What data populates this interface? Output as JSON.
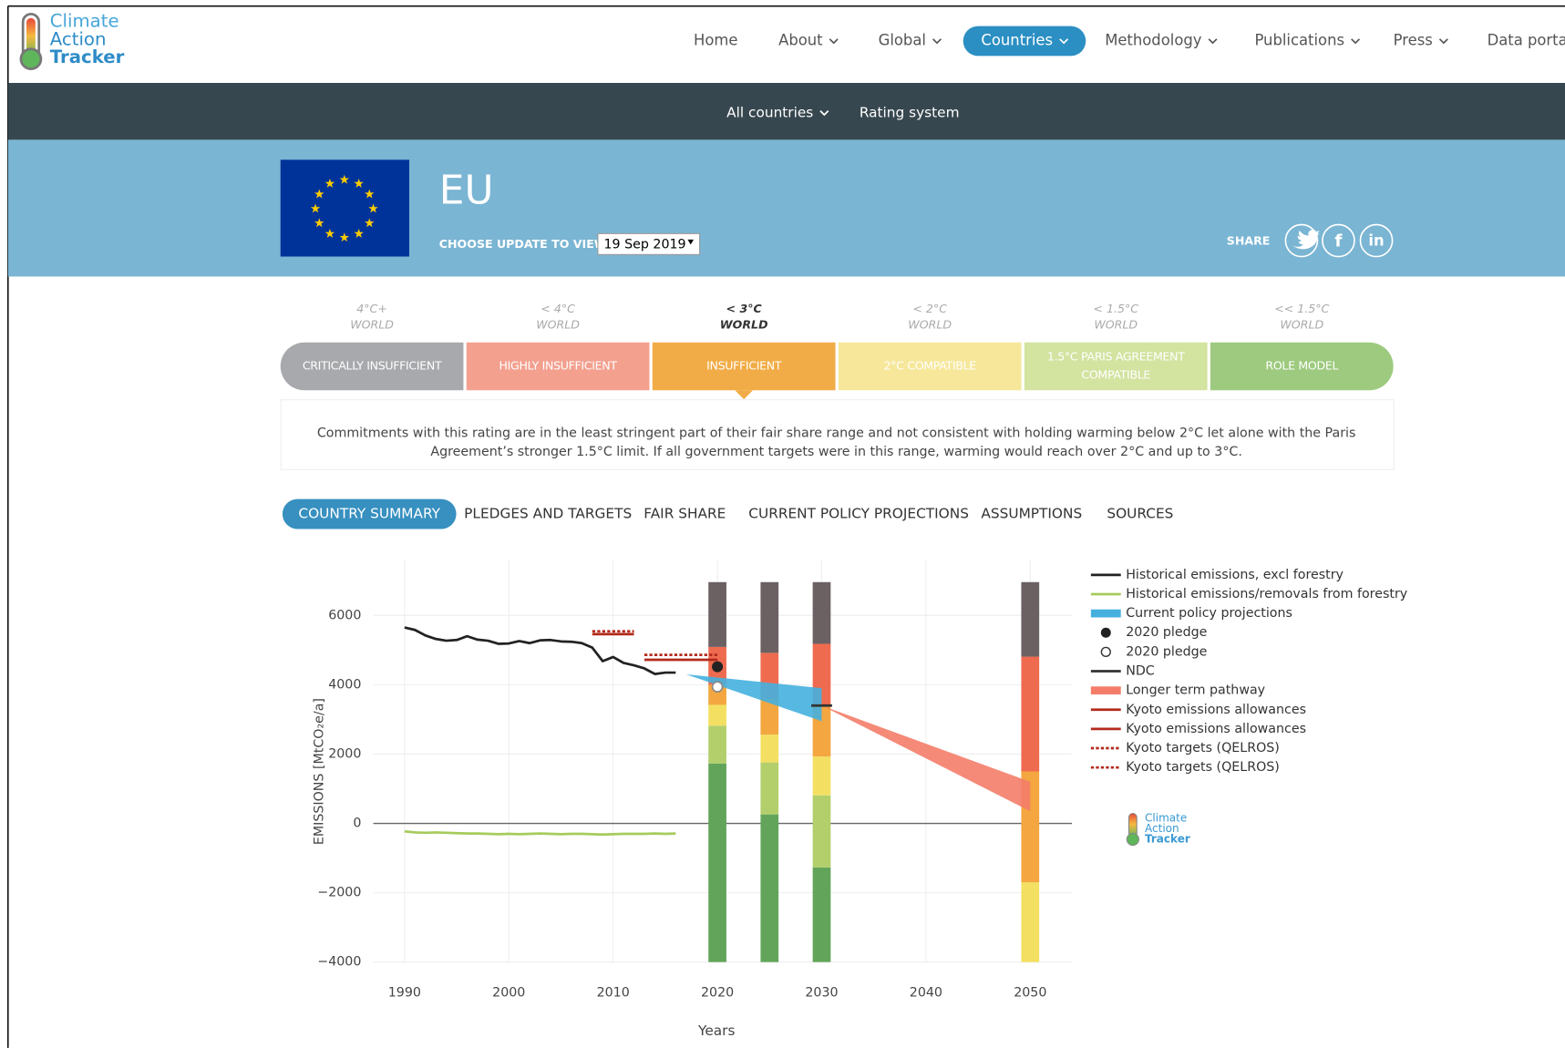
{
  "header": {
    "logo": [
      "Climate",
      "Action",
      "Tracker"
    ],
    "nav": [
      {
        "label": "Home"
      },
      {
        "label": "About",
        "menu": true
      },
      {
        "label": "Global",
        "menu": true
      },
      {
        "label": "Countries",
        "menu": true
      },
      {
        "label": "Methodology",
        "menu": true
      },
      {
        "label": "Publications",
        "menu": true
      },
      {
        "label": "Press",
        "menu": true
      },
      {
        "label": "Data portal"
      }
    ],
    "active": 3
  },
  "subnav": [
    {
      "label": "All countries",
      "menu": true
    },
    {
      "label": "Rating system"
    }
  ],
  "banner": {
    "country": "EU",
    "update_label": "CHOOSE UPDATE TO VIEW",
    "update_value": "19 Sep 2019",
    "share": "SHARE",
    "share_icons": [
      "f",
      "in"
    ]
  },
  "ratings": {
    "items": [
      {
        "level": "4°C+",
        "world": "WORLD",
        "label": [
          "CRITICALLY INSUFFICIENT"
        ],
        "color": "#a7a9ac"
      },
      {
        "level": "< 4°C",
        "world": "WORLD",
        "label": [
          "HIGHLY INSUFFICIENT"
        ],
        "color": "#f3a08f"
      },
      {
        "level": "< 3°C",
        "world": "WORLD",
        "label": [
          "INSUFFICIENT"
        ],
        "color": "#f2ac47"
      },
      {
        "level": "< 2°C",
        "world": "WORLD",
        "label": [
          "2°C COMPATIBLE"
        ],
        "color": "#f6e79b"
      },
      {
        "level": "< 1.5°C",
        "world": "WORLD",
        "label": [
          "1.5°C PARIS AGREEMENT",
          "COMPATIBLE"
        ],
        "color": "#d3e3a0"
      },
      {
        "level": "<< 1.5°C",
        "world": "WORLD",
        "label": [
          "ROLE MODEL"
        ],
        "color": "#9dca7e"
      }
    ],
    "active": 2,
    "description": [
      "Commitments with this rating are in the least stringent part of their fair share range and not consistent with holding warming below 2°C let alone with the Paris",
      "Agreement’s stronger 1.5°C limit. If all government targets were in this range, warming would reach over 2°C and up to 3°C."
    ]
  },
  "tabs": {
    "items": [
      "COUNTRY SUMMARY",
      "PLEDGES AND TARGETS",
      "FAIR SHARE",
      "CURRENT POLICY PROJECTIONS",
      "ASSUMPTIONS",
      "SOURCES"
    ],
    "active": 0
  },
  "chart_data": {
    "type": "combo",
    "x_label": "Years",
    "y_label": "EMISSIONS [MtCO₂e/a]",
    "xlim": [
      1987,
      2054
    ],
    "ylim": [
      -4000,
      7600
    ],
    "xticks": [
      1990,
      2000,
      2010,
      2020,
      2030,
      2040,
      2050
    ],
    "yticks": [
      6000,
      4000,
      2000,
      0,
      {
        "value": -2000,
        "label": "−2000"
      },
      {
        "value": -4000,
        "label": "−4000"
      }
    ],
    "grid": true,
    "rating_bars": {
      "x": [
        2020,
        2025,
        2030,
        2050
      ],
      "segments": [
        {
          "color": "#62a55a",
          "values": [
            5730,
            4260,
            2730,
            null
          ]
        },
        {
          "color": "#b3cf6b",
          "values": [
            1090,
            1500,
            2080,
            null
          ]
        },
        {
          "color": "#f3e062",
          "values": [
            600,
            800,
            1120,
            2300
          ]
        },
        {
          "color": "#f4a640",
          "values": [
            580,
            1040,
            1440,
            3200
          ]
        },
        {
          "color": "#ef6b4f",
          "values": [
            1090,
            1320,
            1810,
            3310
          ]
        },
        {
          "color": "#6b6062",
          "values": [
            1870,
            2040,
            1780,
            2150
          ]
        }
      ]
    },
    "series": [
      {
        "name": "Historical emissions, excl forestry",
        "color": "#222222",
        "style": "line",
        "x": [
          1990,
          1991,
          1992,
          1993,
          1994,
          1995,
          1996,
          1997,
          1998,
          1999,
          2000,
          2001,
          2002,
          2003,
          2004,
          2005,
          2006,
          2007,
          2008,
          2009,
          2010,
          2011,
          2012,
          2013,
          2014,
          2015,
          2016
        ],
        "values": [
          5650,
          5580,
          5420,
          5320,
          5270,
          5290,
          5400,
          5300,
          5270,
          5180,
          5190,
          5260,
          5200,
          5280,
          5290,
          5250,
          5240,
          5200,
          5070,
          4680,
          4800,
          4630,
          4560,
          4470,
          4310,
          4350,
          4350
        ]
      },
      {
        "name": "Historical emissions/removals from forestry",
        "color": "#a6cb5b",
        "style": "line",
        "x": [
          1990,
          1991,
          1992,
          1993,
          1994,
          1995,
          1996,
          1997,
          1998,
          1999,
          2000,
          2001,
          2002,
          2003,
          2004,
          2005,
          2006,
          2007,
          2008,
          2009,
          2010,
          2011,
          2012,
          2013,
          2014,
          2015,
          2016
        ],
        "values": [
          -230,
          -260,
          -270,
          -260,
          -270,
          -280,
          -290,
          -290,
          -300,
          -310,
          -300,
          -310,
          -300,
          -290,
          -300,
          -310,
          -300,
          -300,
          -310,
          -320,
          -310,
          -300,
          -300,
          -300,
          -290,
          -300,
          -290
        ]
      },
      {
        "name": "Current policy projections",
        "color": "#45b0de",
        "style": "band",
        "x": [
          2017,
          2030
        ],
        "low": [
          4300,
          2950
        ],
        "high": [
          4300,
          3900
        ]
      },
      {
        "name": "2020 pledge",
        "color": "#222222",
        "style": "marker-filled",
        "x": [
          2020
        ],
        "values": [
          4520
        ]
      },
      {
        "name": "2020 pledge",
        "color": "#888888",
        "style": "marker-open",
        "x": [
          2020
        ],
        "values": [
          3940
        ]
      },
      {
        "name": "NDC",
        "color": "#333333",
        "style": "line",
        "x": [
          2029,
          2031
        ],
        "values": [
          3400,
          3400
        ]
      },
      {
        "name": "Longer term pathway",
        "color": "#f47d6a",
        "style": "band",
        "x": [
          2030,
          2050
        ],
        "low": [
          3400,
          350
        ],
        "high": [
          3400,
          1200
        ]
      },
      {
        "name": "Kyoto emissions allowances",
        "color": "#b22a1c",
        "style": "line",
        "x": [
          2008,
          2012
        ],
        "values": [
          5460,
          5460
        ]
      },
      {
        "name": "Kyoto emissions allowances",
        "color": "#b22a1c",
        "style": "line",
        "x": [
          2013,
          2020
        ],
        "values": [
          4720,
          4720
        ]
      },
      {
        "name": "Kyoto targets (QELROS)",
        "color": "#b22a1c",
        "style": "dotted",
        "x": [
          2008,
          2012
        ],
        "values": [
          5540,
          5540
        ]
      },
      {
        "name": "Kyoto targets (QELROS)",
        "color": "#b22a1c",
        "style": "dotted",
        "x": [
          2013,
          2020
        ],
        "values": [
          4860,
          4860
        ]
      }
    ],
    "watermark": [
      "Climate",
      "Action",
      "Tracker"
    ]
  }
}
